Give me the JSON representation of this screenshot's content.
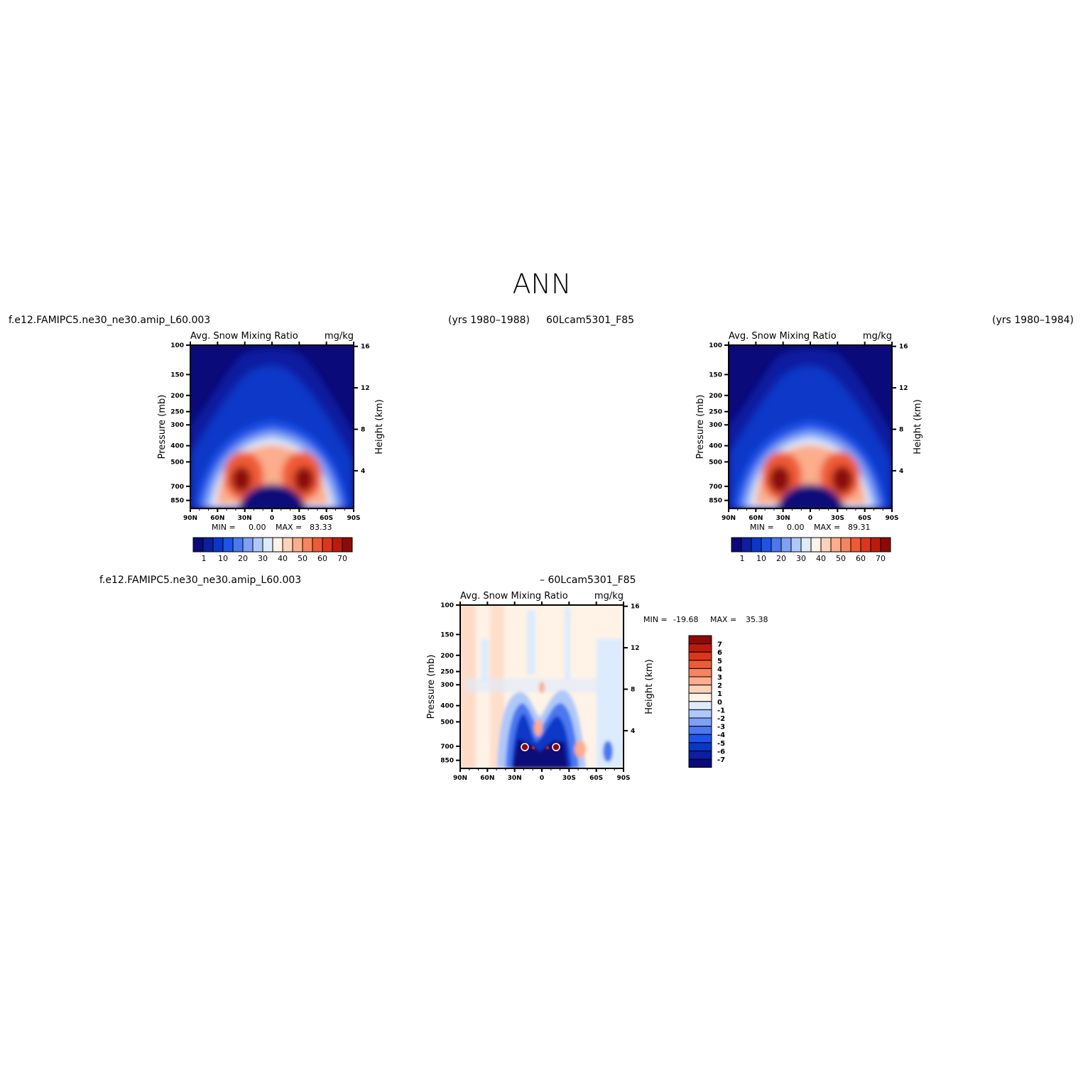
{
  "figure": {
    "title": "ANN",
    "case1_label": "f.e12.FAMIPC5.ne30_ne30.amip_L60.003",
    "case1_years": "(yrs 1980–1988)",
    "case2_label": "60Lcam5301_F85",
    "case2_years": "(yrs 1980–1984)",
    "diff_case1_label": "f.e12.FAMIPC5.ne30_ne30.amip_L60.003",
    "diff_case2_label": "– 60Lcam5301_F85"
  },
  "chart_data": [
    {
      "type": "heatmap",
      "panel": "case1",
      "title": "Avg. Snow Mixing Ratio",
      "units": "mg/kg",
      "ylabel": "Pressure (mb)",
      "ylabel_right": "Height (km)",
      "x_ticks": [
        "90N",
        "60N",
        "30N",
        "0",
        "30S",
        "60S",
        "90S"
      ],
      "y_ticks": [
        "100",
        "150",
        "200",
        "250",
        "300",
        "400",
        "500",
        "700",
        "850"
      ],
      "y_right_ticks": [
        "16",
        "12",
        "8",
        "4"
      ],
      "min_label": "MIN =",
      "min_value": "0.00",
      "max_label": "MAX =",
      "max_value": "83.33",
      "colorbar_labels": [
        "1",
        "10",
        "20",
        "30",
        "40",
        "50",
        "60",
        "70"
      ],
      "colors": [
        "#0a0a7a",
        "#0b1fa0",
        "#0a37c8",
        "#1d53e8",
        "#4a78f0",
        "#7ea0f5",
        "#afc8fa",
        "#dcebfd",
        "#fff2e6",
        "#fdd2b9",
        "#fbad8c",
        "#f6845e",
        "#ef5a35",
        "#dc361a",
        "#bd1a0e",
        "#8c0a08"
      ],
      "features": [
        "subtropical maxima near 30N and 30S between 500 and 700 mb",
        "tropical minimum below 700 mb"
      ]
    },
    {
      "type": "heatmap",
      "panel": "case2",
      "title": "Avg. Snow Mixing Ratio",
      "units": "mg/kg",
      "ylabel": "Pressure (mb)",
      "ylabel_right": "Height (km)",
      "x_ticks": [
        "90N",
        "60N",
        "30N",
        "0",
        "30S",
        "60S",
        "90S"
      ],
      "y_ticks": [
        "100",
        "150",
        "200",
        "250",
        "300",
        "400",
        "500",
        "700",
        "850"
      ],
      "y_right_ticks": [
        "16",
        "12",
        "8",
        "4"
      ],
      "min_label": "MIN =",
      "min_value": "0.00",
      "max_label": "MAX =",
      "max_value": "89.31",
      "colorbar_labels": [
        "1",
        "10",
        "20",
        "30",
        "40",
        "50",
        "60",
        "70"
      ],
      "colors": [
        "#0a0a7a",
        "#0b1fa0",
        "#0a37c8",
        "#1d53e8",
        "#4a78f0",
        "#7ea0f5",
        "#afc8fa",
        "#dcebfd",
        "#fff2e6",
        "#fdd2b9",
        "#fbad8c",
        "#f6845e",
        "#ef5a35",
        "#dc361a",
        "#bd1a0e",
        "#8c0a08"
      ],
      "features": [
        "subtropical maxima near 30N and 30S between 500 and 700 mb",
        "tropical minimum below 700 mb"
      ]
    },
    {
      "type": "heatmap",
      "panel": "difference",
      "title": "Avg. Snow Mixing Ratio",
      "units": "mg/kg",
      "ylabel": "Pressure (mb)",
      "ylabel_right": "Height (km)",
      "x_ticks": [
        "90N",
        "60N",
        "30N",
        "0",
        "30S",
        "60S",
        "90S"
      ],
      "y_ticks": [
        "100",
        "150",
        "200",
        "250",
        "300",
        "400",
        "500",
        "700",
        "850"
      ],
      "y_right_ticks": [
        "16",
        "12",
        "8",
        "4"
      ],
      "min_label": "MIN =",
      "min_value": "-19.68",
      "max_label": "MAX =",
      "max_value": "35.38",
      "colorbar_labels": [
        "7",
        "6",
        "5",
        "4",
        "3",
        "2",
        "1",
        "0",
        "-1",
        "-2",
        "-3",
        "-4",
        "-5",
        "-6",
        "-7"
      ],
      "colors": [
        "#8c0a08",
        "#bd1a0e",
        "#dc361a",
        "#ef5a35",
        "#f6845e",
        "#fbad8c",
        "#fdd2b9",
        "#fff2e6",
        "#dcebfd",
        "#afc8fa",
        "#7ea0f5",
        "#4a78f0",
        "#1d53e8",
        "#0a37c8",
        "#0b1fa0",
        "#0a0a7a"
      ],
      "features": [
        "weak positive differences in upper troposphere",
        "strong negative differences 30N–30S below 400 mb"
      ]
    }
  ]
}
